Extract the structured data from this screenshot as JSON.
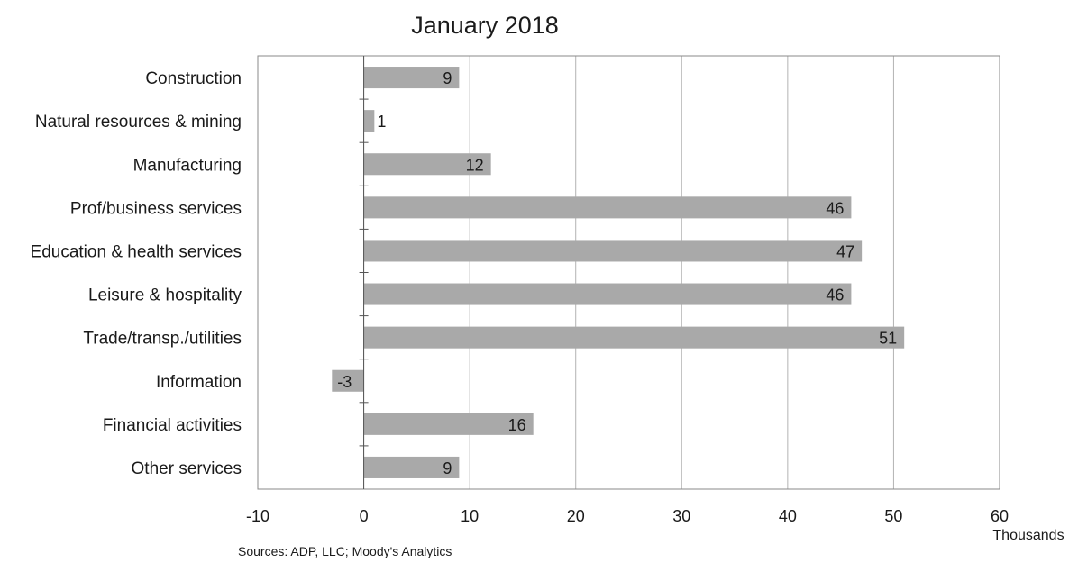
{
  "chart_data": {
    "type": "bar",
    "orientation": "horizontal",
    "title": "January 2018",
    "categories": [
      "Construction",
      "Natural resources & mining",
      "Manufacturing",
      "Prof/business services",
      "Education & health services",
      "Leisure & hospitality",
      "Trade/transp./utilities",
      "Information",
      "Financial activities",
      "Other services"
    ],
    "values": [
      9,
      1,
      12,
      46,
      47,
      46,
      51,
      -3,
      16,
      9
    ],
    "data_labels": [
      "9",
      "1",
      "12",
      "46",
      "47",
      "46",
      "51",
      "-3",
      "16",
      "9"
    ],
    "xlim": [
      -10,
      60
    ],
    "xticks": [
      -10,
      0,
      10,
      20,
      30,
      40,
      50,
      60
    ],
    "xlabel": "Thousands",
    "ylabel": "",
    "grid": "vertical",
    "legend": "none",
    "bar_color": "#a9a9a9",
    "source": "Sources: ADP, LLC; Moody's Analytics"
  }
}
